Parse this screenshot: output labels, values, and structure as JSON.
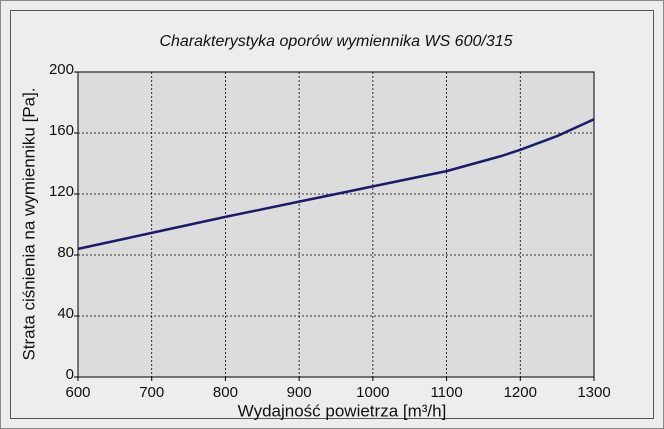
{
  "chart_data": {
    "type": "line",
    "title": "Charakterystyka oporów wymiennika WS 600/315",
    "x_label": "Wydajność powietrza [m³/h]",
    "y_label": "Strata ciśnienia na wymienniku [Pa].",
    "x": [
      600,
      700,
      800,
      900,
      960,
      1000,
      1100,
      1175,
      1200,
      1250,
      1300
    ],
    "series": [
      {
        "color": "#1c1a6b",
        "values": [
          84,
          94.5,
          105,
          115,
          121,
          125,
          135,
          145,
          149,
          158,
          169
        ]
      }
    ],
    "xlim": [
      600,
      1300
    ],
    "xticks": [
      600,
      700,
      800,
      900,
      1000,
      1100,
      1200,
      1300
    ],
    "ylim": [
      0,
      200
    ],
    "yticks": [
      0,
      40,
      80,
      120,
      160,
      200
    ],
    "grid": true
  }
}
